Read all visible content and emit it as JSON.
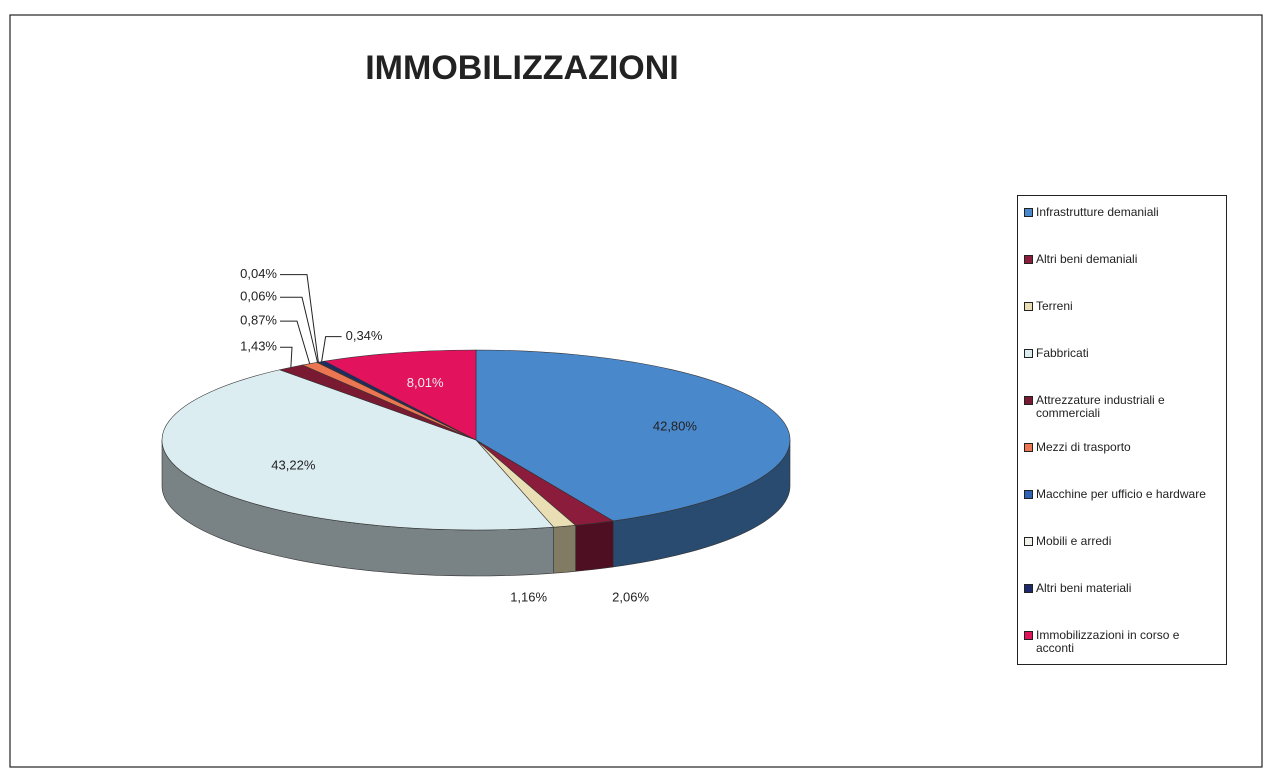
{
  "chart_data": {
    "type": "pie",
    "title": "IMMOBILIZZAZIONI",
    "categories": [
      "Infrastrutture demaniali",
      "Altri beni demaniali",
      "Terreni",
      "Fabbricati",
      "Attrezzature industriali e commerciali",
      "Mezzi di trasporto",
      "Macchine per ufficio e hardware",
      "Mobili e arredi",
      "Altri beni materiali",
      "Immobilizzazioni in corso e acconti"
    ],
    "values": [
      42.8,
      2.06,
      1.16,
      43.22,
      1.43,
      0.87,
      0.06,
      0.04,
      0.34,
      8.01
    ],
    "value_labels": [
      "42,80%",
      "2,06%",
      "1,16%",
      "43,22%",
      "1,43%",
      "0,87%",
      "0,06%",
      "0,04%",
      "0,34%",
      "8,01%"
    ],
    "colors": [
      "#4a88cc",
      "#8c1c3c",
      "#eadfb4",
      "#dcedf2",
      "#7a1a32",
      "#ec7652",
      "#2f62b4",
      "#f2f2ea",
      "#1c2a6c",
      "#e2135c"
    ],
    "legend_position": "right"
  }
}
